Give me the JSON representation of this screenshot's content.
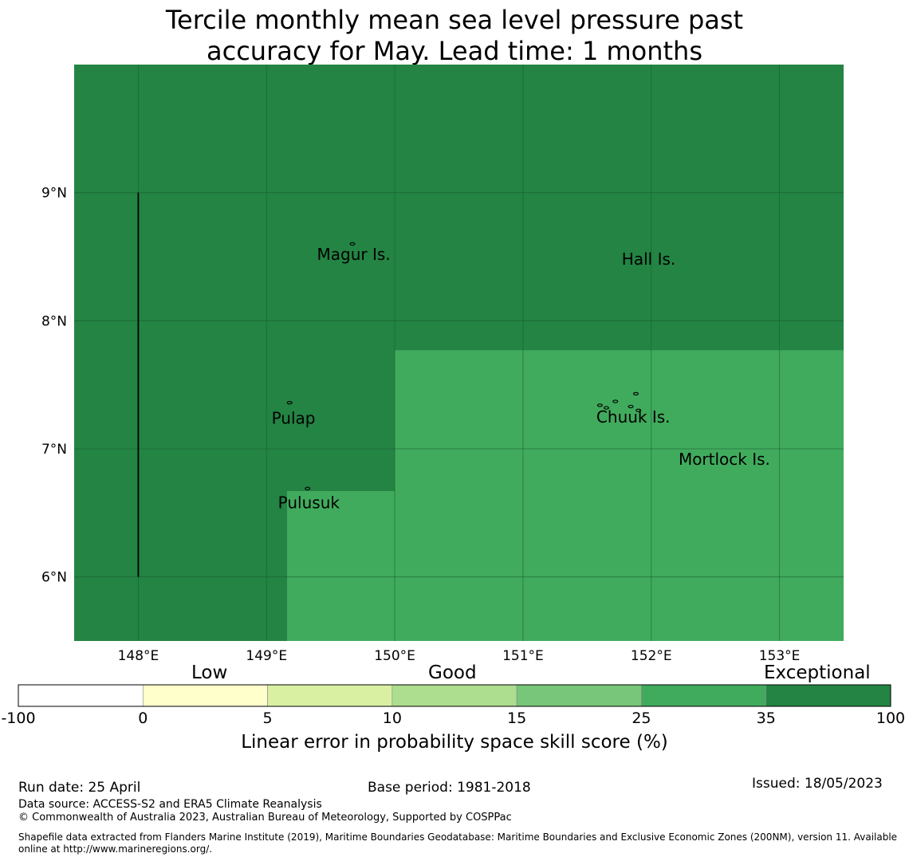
{
  "title_line1": "Tercile monthly mean sea level pressure past",
  "title_line2": "accuracy for May. Lead time: 1 months",
  "colors": {
    "exceptional_dark": "#238443",
    "good_high": "#41ab5d",
    "ocean_grid": "#1a5c30",
    "coast": "#000000"
  },
  "map": {
    "lon_range": [
      147.5,
      153.5
    ],
    "lat_range": [
      5.5,
      10.0
    ],
    "lon_ticks": [
      {
        "value": 148,
        "label": "148°E"
      },
      {
        "value": 149,
        "label": "149°E"
      },
      {
        "value": 150,
        "label": "150°E"
      },
      {
        "value": 151,
        "label": "151°E"
      },
      {
        "value": 152,
        "label": "152°E"
      },
      {
        "value": 153,
        "label": "153°E"
      }
    ],
    "lat_ticks": [
      {
        "value": 9,
        "label": "9°N"
      },
      {
        "value": 8,
        "label": "8°N"
      },
      {
        "value": 7,
        "label": "7°N"
      },
      {
        "value": 6,
        "label": "6°N"
      }
    ],
    "regions": [
      {
        "category": "Exceptional",
        "lon": [
          147.5,
          153.5
        ],
        "lat": [
          5.5,
          10.0
        ]
      },
      {
        "category": "25-35",
        "lon": [
          150.0,
          153.5
        ],
        "lat": [
          5.5,
          7.77
        ]
      },
      {
        "category": "25-35",
        "lon": [
          149.16,
          150.0
        ],
        "lat": [
          5.5,
          6.67
        ]
      }
    ],
    "boundary_line": {
      "lon": 148.0,
      "lat": [
        6.0,
        9.0
      ]
    },
    "places": [
      {
        "name": "Magur Is.",
        "lon": 149.68,
        "lat": 8.52
      },
      {
        "name": "Hall Is.",
        "lon": 151.98,
        "lat": 8.48
      },
      {
        "name": "Pulap",
        "lon": 149.21,
        "lat": 7.24
      },
      {
        "name": "Chuuk Is.",
        "lon": 151.86,
        "lat": 7.25
      },
      {
        "name": "Mortlock Is.",
        "lon": 152.57,
        "lat": 6.92
      },
      {
        "name": "Pulusuk",
        "lon": 149.33,
        "lat": 6.58
      }
    ]
  },
  "colorbar": {
    "category_labels": [
      "Low",
      "Good",
      "Exceptional"
    ],
    "bins": [
      {
        "from": "-100",
        "to": "0",
        "color": "#ffffff"
      },
      {
        "from": "0",
        "to": "5",
        "color": "#ffffcc"
      },
      {
        "from": "5",
        "to": "10",
        "color": "#d9f0a3"
      },
      {
        "from": "10",
        "to": "15",
        "color": "#addd8e"
      },
      {
        "from": "15",
        "to": "25",
        "color": "#78c679"
      },
      {
        "from": "25",
        "to": "35",
        "color": "#41ab5d"
      },
      {
        "from": "35",
        "to": "100",
        "color": "#238443"
      }
    ],
    "ticks": [
      "-100",
      "0",
      "5",
      "10",
      "15",
      "25",
      "35",
      "100"
    ],
    "axis_label": "Linear error in probability space skill score (%)"
  },
  "footer": {
    "run_date": "Run date: 25 April",
    "base_period": "Base period: 1981-2018",
    "issued": "Issued: 18/05/2023",
    "data_source": "Data source: ACCESS-S2 and ERA5 Climate Reanalysis",
    "copyright": "© Commonwealth of Australia 2023, Australian Bureau of Meteorology, Supported by COSPPac",
    "shapefile": "Shapefile data extracted from Flanders Marine Institute (2019), Maritime Boundaries Geodatabase: Maritime Boundaries and Exclusive Economic Zones (200NM), version 11. Available online at http://www.marineregions.org/."
  }
}
